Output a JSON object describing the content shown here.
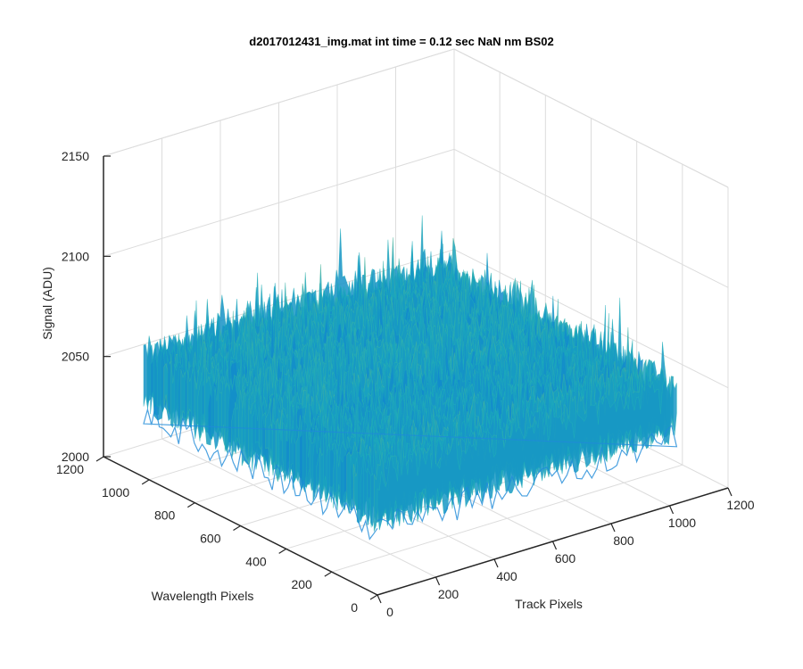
{
  "chart_data": {
    "type": "surface",
    "title": "d2017012431_img.mat int time = 0.12 sec  NaN nm BS02",
    "xlabel": "Track Pixels",
    "ylabel": "Wavelength Pixels",
    "zlabel": "Signal (ADU)",
    "xlim": [
      0,
      1200
    ],
    "ylim": [
      0,
      1200
    ],
    "zlim": [
      2000,
      2150
    ],
    "x_ticks": [
      "0",
      "200",
      "400",
      "600",
      "800",
      "1000",
      "1200"
    ],
    "y_ticks": [
      "0",
      "200",
      "400",
      "600",
      "800",
      "1000",
      "1200"
    ],
    "z_ticks": [
      "2000",
      "2050",
      "2100",
      "2150"
    ],
    "grid": true,
    "colormap": "parula",
    "data_extent": {
      "x": [
        0,
        1024
      ],
      "y": [
        0,
        1024
      ]
    },
    "signal_baseline": 2060,
    "signal_noise_range": [
      2030,
      2120
    ],
    "colors": {
      "low": "#0a72d8",
      "mid": "#1fb0b8",
      "high": "#d8c63a"
    }
  }
}
